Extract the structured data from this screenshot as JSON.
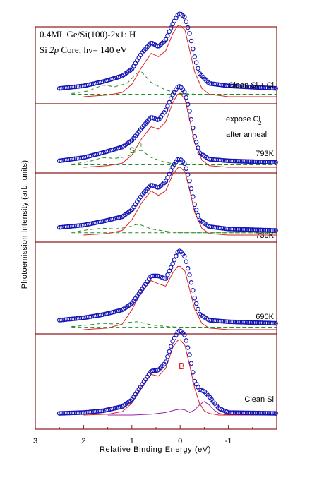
{
  "chart_data": {
    "type": "line",
    "title_line1": "0.4ML Ge/Si(100)-2x1: H",
    "title_line2_prefix": "Si ",
    "title_line2_italic": "2p",
    "title_line2_suffix": " Core; hv= 140 eV",
    "xlabel": "Relative Binding Energy (eV)",
    "ylabel": "Photoemission Intensity (arb. units)",
    "xlim": [
      3,
      -2
    ],
    "x_reversed": true,
    "xticks": [
      3,
      2,
      1,
      0,
      -1
    ],
    "xtick_labels": [
      "3",
      "2",
      "1",
      "0",
      "-1"
    ],
    "grid": false,
    "colors": {
      "frame": "#8b1a1a",
      "data_points": "#1414b4",
      "fit_total": "#dd2222",
      "component_dashed": "#228822",
      "component_b": "#d02020",
      "component_purple": "#9922aa",
      "text": "#000000"
    },
    "panels": [
      {
        "name": "Clean Si + Cl",
        "labels": [
          "Clean Si + Cl"
        ],
        "baseline_dashed": 0.03,
        "series": [
          {
            "x": [
              2.5,
              2.0,
              1.6,
              1.2,
              1.0,
              0.8,
              0.6,
              0.45,
              0.3,
              0.15,
              0.05,
              0.0,
              -0.1,
              -0.2,
              -0.3,
              -0.4,
              -0.6,
              -1.0,
              -2.0
            ],
            "values": [
              0.1,
              0.13,
              0.18,
              0.25,
              0.33,
              0.52,
              0.65,
              0.6,
              0.68,
              0.88,
              0.98,
              1.0,
              0.95,
              0.75,
              0.48,
              0.28,
              0.16,
              0.13,
              0.1
            ]
          },
          {
            "x": [
              2.0,
              1.5,
              1.2,
              1.0,
              0.8,
              0.6,
              0.45,
              0.3,
              0.15,
              0.05,
              0.0,
              -0.1,
              -0.2,
              -0.3,
              -0.45,
              -0.6,
              -1.0,
              -2.0
            ],
            "values": [
              0.0,
              0.02,
              0.05,
              0.15,
              0.35,
              0.52,
              0.48,
              0.55,
              0.76,
              0.85,
              0.86,
              0.8,
              0.55,
              0.3,
              0.1,
              0.03,
              0.0,
              0.0
            ]
          },
          {
            "x": [
              2.2,
              1.9,
              1.6,
              1.35,
              1.1,
              0.9,
              0.8,
              0.6,
              0.3,
              0.0,
              -0.3,
              -1.0,
              -2.0
            ],
            "values": [
              0.04,
              0.07,
              0.14,
              0.12,
              0.16,
              0.28,
              0.3,
              0.17,
              0.08,
              0.04,
              0.03,
              0.03,
              0.03
            ]
          }
        ]
      },
      {
        "name": "793K",
        "labels": [
          "expose Cl",
          "2",
          "after anneal",
          "793K",
          "Si",
          "+"
        ],
        "baseline_dashed": 0.03,
        "series": [
          {
            "x": [
              2.5,
              2.0,
              1.6,
              1.2,
              1.0,
              0.8,
              0.6,
              0.45,
              0.3,
              0.15,
              0.05,
              0.0,
              -0.1,
              -0.2,
              -0.3,
              -0.4,
              -0.6,
              -1.0,
              -2.0
            ],
            "values": [
              0.08,
              0.12,
              0.18,
              0.25,
              0.33,
              0.48,
              0.62,
              0.58,
              0.7,
              0.9,
              0.99,
              1.0,
              0.92,
              0.68,
              0.38,
              0.18,
              0.1,
              0.08,
              0.06
            ]
          },
          {
            "x": [
              2.0,
              1.5,
              1.2,
              1.0,
              0.8,
              0.6,
              0.45,
              0.3,
              0.15,
              0.05,
              0.0,
              -0.1,
              -0.2,
              -0.3,
              -0.45,
              -0.6,
              -1.0,
              -2.0
            ],
            "values": [
              0.0,
              0.02,
              0.05,
              0.15,
              0.35,
              0.5,
              0.47,
              0.56,
              0.8,
              0.9,
              0.91,
              0.84,
              0.58,
              0.3,
              0.09,
              0.02,
              0.0,
              0.0
            ]
          },
          {
            "x": [
              2.2,
              1.9,
              1.6,
              1.35,
              1.1,
              0.9,
              0.8,
              0.6,
              0.3,
              0.0,
              -0.3,
              -1.0,
              -2.0
            ],
            "values": [
              0.04,
              0.07,
              0.12,
              0.11,
              0.13,
              0.2,
              0.21,
              0.12,
              0.06,
              0.03,
              0.03,
              0.03,
              0.03
            ]
          }
        ]
      },
      {
        "name": "730K",
        "labels": [
          "730K"
        ],
        "baseline_dashed": 0.03,
        "series": [
          {
            "x": [
              2.5,
              2.0,
              1.6,
              1.2,
              1.0,
              0.8,
              0.6,
              0.45,
              0.3,
              0.15,
              0.05,
              0.0,
              -0.1,
              -0.2,
              -0.3,
              -0.4,
              -0.6,
              -1.0,
              -2.0
            ],
            "values": [
              0.1,
              0.13,
              0.18,
              0.24,
              0.33,
              0.52,
              0.66,
              0.62,
              0.7,
              0.9,
              0.99,
              1.0,
              0.93,
              0.7,
              0.4,
              0.2,
              0.11,
              0.08,
              0.06
            ]
          },
          {
            "x": [
              2.0,
              1.5,
              1.2,
              1.0,
              0.8,
              0.6,
              0.45,
              0.3,
              0.15,
              0.05,
              0.0,
              -0.1,
              -0.2,
              -0.3,
              -0.45,
              -0.6,
              -1.0,
              -2.0
            ],
            "values": [
              0.0,
              0.02,
              0.06,
              0.2,
              0.42,
              0.58,
              0.52,
              0.58,
              0.8,
              0.88,
              0.89,
              0.83,
              0.58,
              0.3,
              0.09,
              0.02,
              0.0,
              0.0
            ]
          },
          {
            "x": [
              2.2,
              1.9,
              1.6,
              1.35,
              1.1,
              0.9,
              0.8,
              0.6,
              0.3,
              0.0,
              -0.3,
              -1.0,
              -2.0
            ],
            "values": [
              0.04,
              0.07,
              0.09,
              0.08,
              0.1,
              0.14,
              0.13,
              0.08,
              0.05,
              0.03,
              0.03,
              0.03,
              0.03
            ]
          }
        ]
      },
      {
        "name": "690K",
        "labels": [
          "690K"
        ],
        "baseline_dashed": 0.03,
        "series": [
          {
            "x": [
              2.5,
              2.0,
              1.6,
              1.2,
              1.0,
              0.8,
              0.6,
              0.45,
              0.3,
              0.15,
              0.05,
              0.0,
              -0.1,
              -0.2,
              -0.3,
              -0.4,
              -0.6,
              -1.0,
              -2.0
            ],
            "values": [
              0.12,
              0.15,
              0.19,
              0.25,
              0.33,
              0.5,
              0.68,
              0.68,
              0.64,
              0.84,
              0.98,
              1.0,
              0.92,
              0.68,
              0.4,
              0.2,
              0.12,
              0.1,
              0.08
            ]
          },
          {
            "x": [
              2.0,
              1.5,
              1.2,
              1.0,
              0.8,
              0.6,
              0.45,
              0.3,
              0.15,
              0.05,
              0.0,
              -0.1,
              -0.2,
              -0.3,
              -0.45,
              -0.6,
              -1.0,
              -2.0
            ],
            "values": [
              0.0,
              0.02,
              0.07,
              0.25,
              0.48,
              0.62,
              0.58,
              0.55,
              0.72,
              0.8,
              0.8,
              0.74,
              0.5,
              0.26,
              0.08,
              0.02,
              0.0,
              0.0
            ]
          },
          {
            "x": [
              2.2,
              1.9,
              1.6,
              1.35,
              1.1,
              0.9,
              0.8,
              0.6,
              0.3,
              0.0,
              -0.3,
              -1.0,
              -2.0
            ],
            "values": [
              0.04,
              0.06,
              0.08,
              0.07,
              0.09,
              0.1,
              0.09,
              0.06,
              0.04,
              0.03,
              0.03,
              0.03,
              0.03
            ]
          }
        ]
      },
      {
        "name": "Clean Si",
        "labels": [
          "Clean Si",
          "B"
        ],
        "baseline_dashed": null,
        "series": [
          {
            "x": [
              2.5,
              2.0,
              1.6,
              1.2,
              1.0,
              0.8,
              0.6,
              0.45,
              0.3,
              0.15,
              0.05,
              0.0,
              -0.1,
              -0.2,
              -0.3,
              -0.4,
              -0.5,
              -0.6,
              -0.8,
              -1.0,
              -2.0
            ],
            "values": [
              0.02,
              0.03,
              0.05,
              0.1,
              0.18,
              0.35,
              0.52,
              0.53,
              0.62,
              0.88,
              0.98,
              1.0,
              0.94,
              0.7,
              0.4,
              0.3,
              0.28,
              0.22,
              0.08,
              0.03,
              0.02
            ]
          },
          {
            "x": [
              2.0,
              1.5,
              1.2,
              1.0,
              0.8,
              0.6,
              0.45,
              0.3,
              0.15,
              0.05,
              0.0,
              -0.1,
              -0.2,
              -0.3,
              -0.4,
              -0.5,
              -0.6,
              -0.8,
              -1.0,
              -2.0
            ],
            "values": [
              0.0,
              0.01,
              0.04,
              0.14,
              0.34,
              0.48,
              0.46,
              0.55,
              0.8,
              0.88,
              0.89,
              0.82,
              0.58,
              0.32,
              0.14,
              0.05,
              0.02,
              0.0,
              0.0,
              0.0
            ]
          },
          {
            "x": [
              1.5,
              1.0,
              0.6,
              0.3,
              0.1,
              0.0,
              -0.1,
              -0.2,
              -0.3,
              -0.4,
              -0.5,
              -0.6,
              -0.7,
              -0.8,
              -1.0,
              -2.0
            ],
            "values": [
              0.0,
              0.0,
              0.01,
              0.03,
              0.06,
              0.07,
              0.06,
              0.03,
              0.06,
              0.12,
              0.16,
              0.12,
              0.06,
              0.02,
              0.0,
              0.0
            ]
          }
        ]
      }
    ]
  }
}
